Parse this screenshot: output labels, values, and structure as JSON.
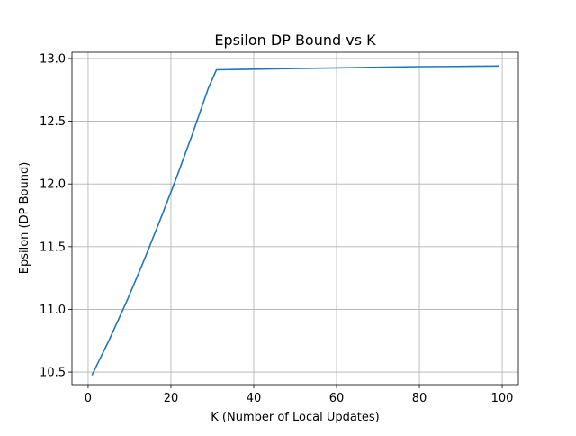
{
  "chart_data": {
    "type": "line",
    "title": "Epsilon DP Bound vs K",
    "xlabel": "K (Number of Local Updates)",
    "ylabel": "Epsilon (DP Bound)",
    "xlim": [
      -3.9,
      103.9
    ],
    "ylim": [
      10.4,
      13.05
    ],
    "xticks": [
      0,
      20,
      40,
      60,
      80,
      100
    ],
    "yticks": [
      10.5,
      11.0,
      11.5,
      12.0,
      12.5,
      13.0
    ],
    "xtick_labels": [
      "0",
      "20",
      "40",
      "60",
      "80",
      "100"
    ],
    "ytick_labels": [
      "10.5",
      "11.0",
      "11.5",
      "12.0",
      "12.5",
      "13.0"
    ],
    "grid": true,
    "series": [
      {
        "color": "#1f77b4",
        "x": [
          1,
          5,
          9,
          13,
          17,
          21,
          25,
          29,
          31,
          40,
          50,
          60,
          70,
          80,
          90,
          99
        ],
        "y": [
          10.48,
          10.75,
          11.04,
          11.35,
          11.68,
          12.02,
          12.38,
          12.76,
          12.91,
          12.915,
          12.92,
          12.925,
          12.93,
          12.935,
          12.937,
          12.94
        ]
      }
    ]
  }
}
